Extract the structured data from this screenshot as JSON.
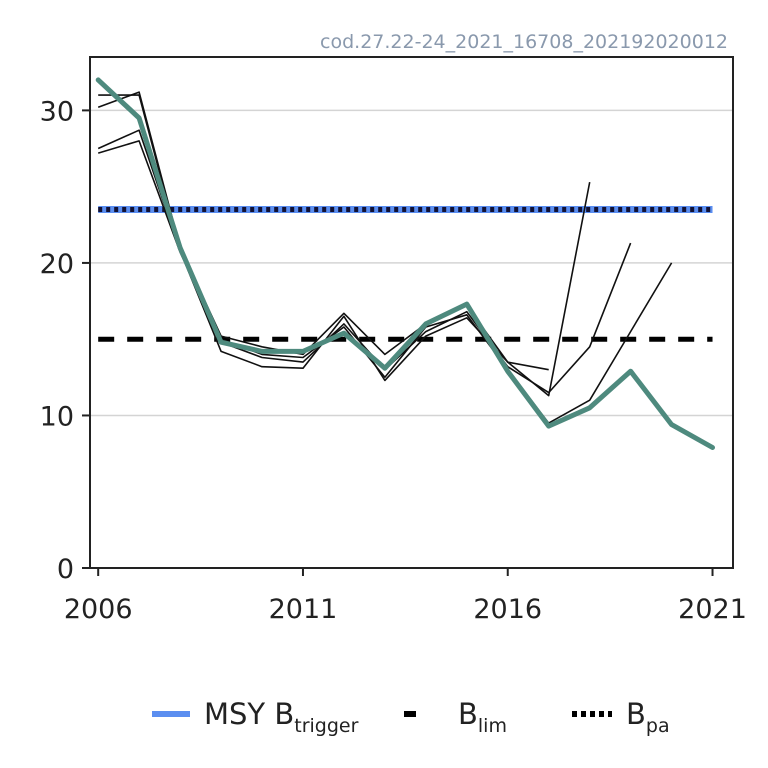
{
  "chart_data": {
    "type": "line",
    "source_label": "cod.27.22-24_2021_16708_202192020012",
    "xlim": [
      2005.8,
      2021.5
    ],
    "ylim": [
      0,
      33.5
    ],
    "x_ticks": [
      2006,
      2011,
      2016,
      2021
    ],
    "y_ticks": [
      0,
      10,
      20,
      30
    ],
    "grid_y": true,
    "reference_lines": [
      {
        "name": "MSY Btrigger",
        "value": 23.5,
        "color": "#5b8ef0",
        "style": "solid"
      },
      {
        "name": "Blim",
        "value": 15.0,
        "color": "#000000",
        "style": "dashed"
      },
      {
        "name": "Bpa",
        "value": 23.5,
        "color": "#111133",
        "style": "dotted"
      }
    ],
    "retrospective_series": [
      {
        "x": [
          2006,
          2007,
          2008,
          2009,
          2010,
          2011,
          2012,
          2013,
          2014,
          2015,
          2016,
          2017
        ],
        "y": [
          30.2,
          31.2,
          21.0,
          15.2,
          14.5,
          14.0,
          16.7,
          14.0,
          16.0,
          17.2,
          13.5,
          13.0
        ]
      },
      {
        "x": [
          2006,
          2007,
          2008,
          2009,
          2010,
          2011,
          2012,
          2013,
          2014,
          2015,
          2016,
          2017,
          2018
        ],
        "y": [
          31.0,
          31.0,
          20.8,
          14.2,
          13.2,
          13.1,
          16.5,
          12.3,
          15.2,
          16.4,
          13.5,
          11.3,
          25.3
        ]
      },
      {
        "x": [
          2006,
          2007,
          2008,
          2009,
          2010,
          2011,
          2012,
          2013,
          2014,
          2015,
          2016,
          2017,
          2018,
          2019
        ],
        "y": [
          27.5,
          28.7,
          20.8,
          14.8,
          13.8,
          13.5,
          16.0,
          13.0,
          15.5,
          16.8,
          13.2,
          11.5,
          14.5,
          21.3
        ]
      },
      {
        "x": [
          2006,
          2007,
          2008,
          2009,
          2010,
          2011,
          2012,
          2013,
          2014,
          2015,
          2016,
          2017,
          2018,
          2019,
          2020
        ],
        "y": [
          27.2,
          28.0,
          20.7,
          15.0,
          14.0,
          13.8,
          15.8,
          12.5,
          15.8,
          16.6,
          13.0,
          9.5,
          11.0,
          15.5,
          20.0
        ]
      }
    ],
    "main_series": {
      "x": [
        2006,
        2007,
        2008,
        2009,
        2010,
        2011,
        2012,
        2013,
        2014,
        2015,
        2016,
        2017,
        2018,
        2019,
        2020,
        2021
      ],
      "y": [
        32.0,
        29.5,
        21.0,
        14.8,
        14.2,
        14.2,
        15.4,
        13.1,
        16.0,
        17.3,
        12.9,
        9.3,
        10.5,
        12.9,
        9.4,
        7.9
      ],
      "color": "#4e8a7e"
    },
    "legend": {
      "position": "bottom",
      "items": [
        {
          "main": "MSY B",
          "sub": "trigger",
          "color": "#5b8ef0",
          "style": "solid"
        },
        {
          "main": "B",
          "sub": "lim",
          "color": "#000000",
          "style": "dashed"
        },
        {
          "main": "B",
          "sub": "pa",
          "color": "#000000",
          "style": "dotted"
        }
      ]
    }
  }
}
